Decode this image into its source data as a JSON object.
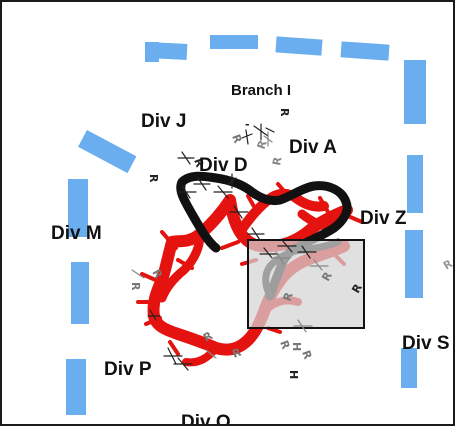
{
  "colors": {
    "boundary": "#6aaef0",
    "red_track": "#e5130f",
    "black_track": "#111111",
    "grey_track": "#8a8a8a",
    "highlight_fill": "#d4d4d4",
    "highlight_stroke": "#111111"
  },
  "labels": {
    "branch_i": "Branch I",
    "div_j": "Div J",
    "div_a": "Div A",
    "div_d": "Div D",
    "div_z": "Div Z",
    "div_m": "Div M",
    "div_p": "Div P",
    "div_s": "Div S",
    "div_o": "Div O"
  },
  "markers": {
    "r": "R",
    "h": "H",
    "dash": "-"
  }
}
